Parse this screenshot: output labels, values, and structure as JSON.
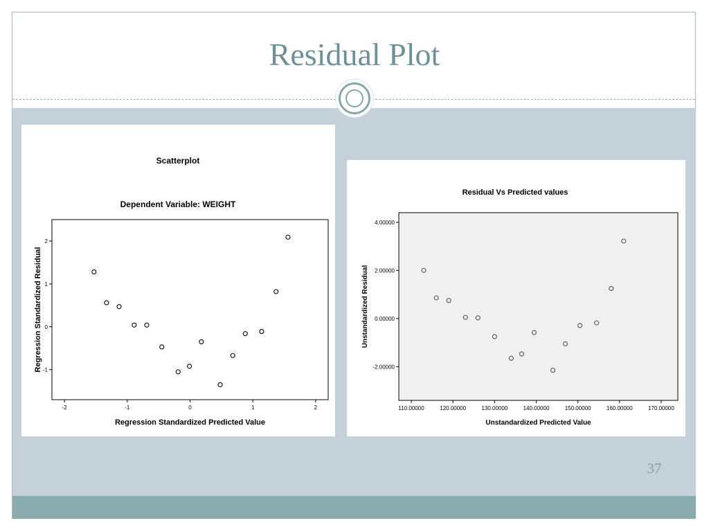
{
  "slide": {
    "title": "Residual Plot",
    "page_number": "37"
  },
  "chart_data": [
    {
      "type": "scatter",
      "title": "Scatterplot",
      "subtitle": "Dependent Variable: WEIGHT",
      "xlabel": "Regression Standardized Predicted Value",
      "ylabel": "Regression Standardized Residual",
      "xlim": [
        -2.2,
        2.2
      ],
      "ylim": [
        -1.7,
        2.5
      ],
      "xticks": [
        -2,
        -1,
        0,
        1,
        2
      ],
      "xtick_labels": [
        "-2",
        "-1",
        "0",
        "1",
        "2"
      ],
      "yticks": [
        -1,
        0,
        1,
        2
      ],
      "ytick_labels": [
        "-1",
        "0",
        "1",
        "2"
      ],
      "grid": false,
      "marker": "open-circle",
      "points": [
        {
          "x": -1.53,
          "y": 1.28
        },
        {
          "x": -1.33,
          "y": 0.56
        },
        {
          "x": -1.13,
          "y": 0.47
        },
        {
          "x": -0.89,
          "y": 0.04
        },
        {
          "x": -0.69,
          "y": 0.04
        },
        {
          "x": -0.45,
          "y": -0.47
        },
        {
          "x": -0.19,
          "y": -1.05
        },
        {
          "x": -0.01,
          "y": -0.92
        },
        {
          "x": 0.18,
          "y": -0.35
        },
        {
          "x": 0.48,
          "y": -1.35
        },
        {
          "x": 0.68,
          "y": -0.67
        },
        {
          "x": 0.88,
          "y": -0.16
        },
        {
          "x": 1.14,
          "y": -0.11
        },
        {
          "x": 1.37,
          "y": 0.82
        },
        {
          "x": 1.56,
          "y": 2.09
        }
      ]
    },
    {
      "type": "scatter",
      "title": "Residual Vs Predicted values",
      "xlabel": "Unstandardized Predicted Value",
      "ylabel": "Unstandardized Residual",
      "xlim": [
        107.0,
        174.0
      ],
      "ylim": [
        -3.4,
        4.4
      ],
      "xticks": [
        110,
        120,
        130,
        140,
        150,
        160,
        170
      ],
      "xtick_labels": [
        "110.00000",
        "120.00000",
        "130.00000",
        "140.00000",
        "150.00000",
        "160.00000",
        "170.00000"
      ],
      "yticks": [
        -2,
        0,
        2,
        4
      ],
      "ytick_labels": [
        "-2.00000",
        "0.00000",
        "2.00000",
        "4.00000"
      ],
      "grid": false,
      "marker": "open-circle",
      "points": [
        {
          "x": 113.0,
          "y": 2.0
        },
        {
          "x": 116.0,
          "y": 0.86
        },
        {
          "x": 119.0,
          "y": 0.75
        },
        {
          "x": 123.0,
          "y": 0.05
        },
        {
          "x": 126.0,
          "y": 0.03
        },
        {
          "x": 130.0,
          "y": -0.75
        },
        {
          "x": 134.0,
          "y": -1.65
        },
        {
          "x": 136.5,
          "y": -1.47
        },
        {
          "x": 139.5,
          "y": -0.58
        },
        {
          "x": 144.0,
          "y": -2.15
        },
        {
          "x": 147.0,
          "y": -1.05
        },
        {
          "x": 150.5,
          "y": -0.29
        },
        {
          "x": 154.5,
          "y": -0.18
        },
        {
          "x": 158.0,
          "y": 1.25
        },
        {
          "x": 161.0,
          "y": 3.22
        }
      ]
    }
  ]
}
